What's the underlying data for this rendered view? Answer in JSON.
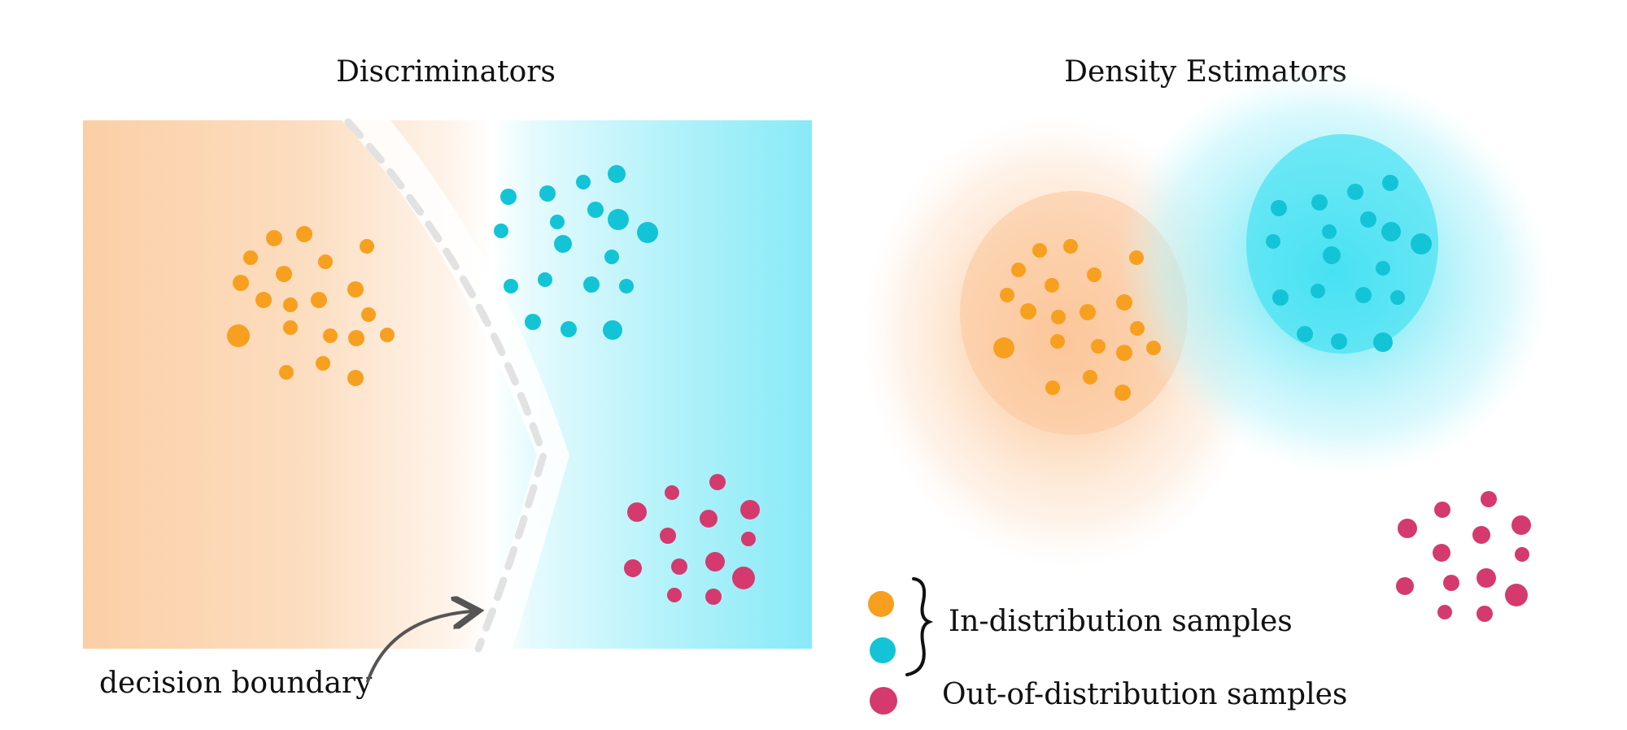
{
  "panels": {
    "left_title": "Discriminators",
    "right_title": "Density Estimators"
  },
  "annotations": {
    "decision_boundary": "decision boundary"
  },
  "legend": {
    "in_distribution": "In-distribution samples",
    "out_of_distribution": "Out-of-distribution samples"
  },
  "colors": {
    "orange_samples": "#F7A020",
    "cyan_samples": "#12C4D6",
    "ood_samples": "#D43A6E",
    "orange_region": "#FBC99A",
    "cyan_region": "#7EEAF7",
    "boundary_dash": "#E2E2E2",
    "arrow": "#555555"
  }
}
